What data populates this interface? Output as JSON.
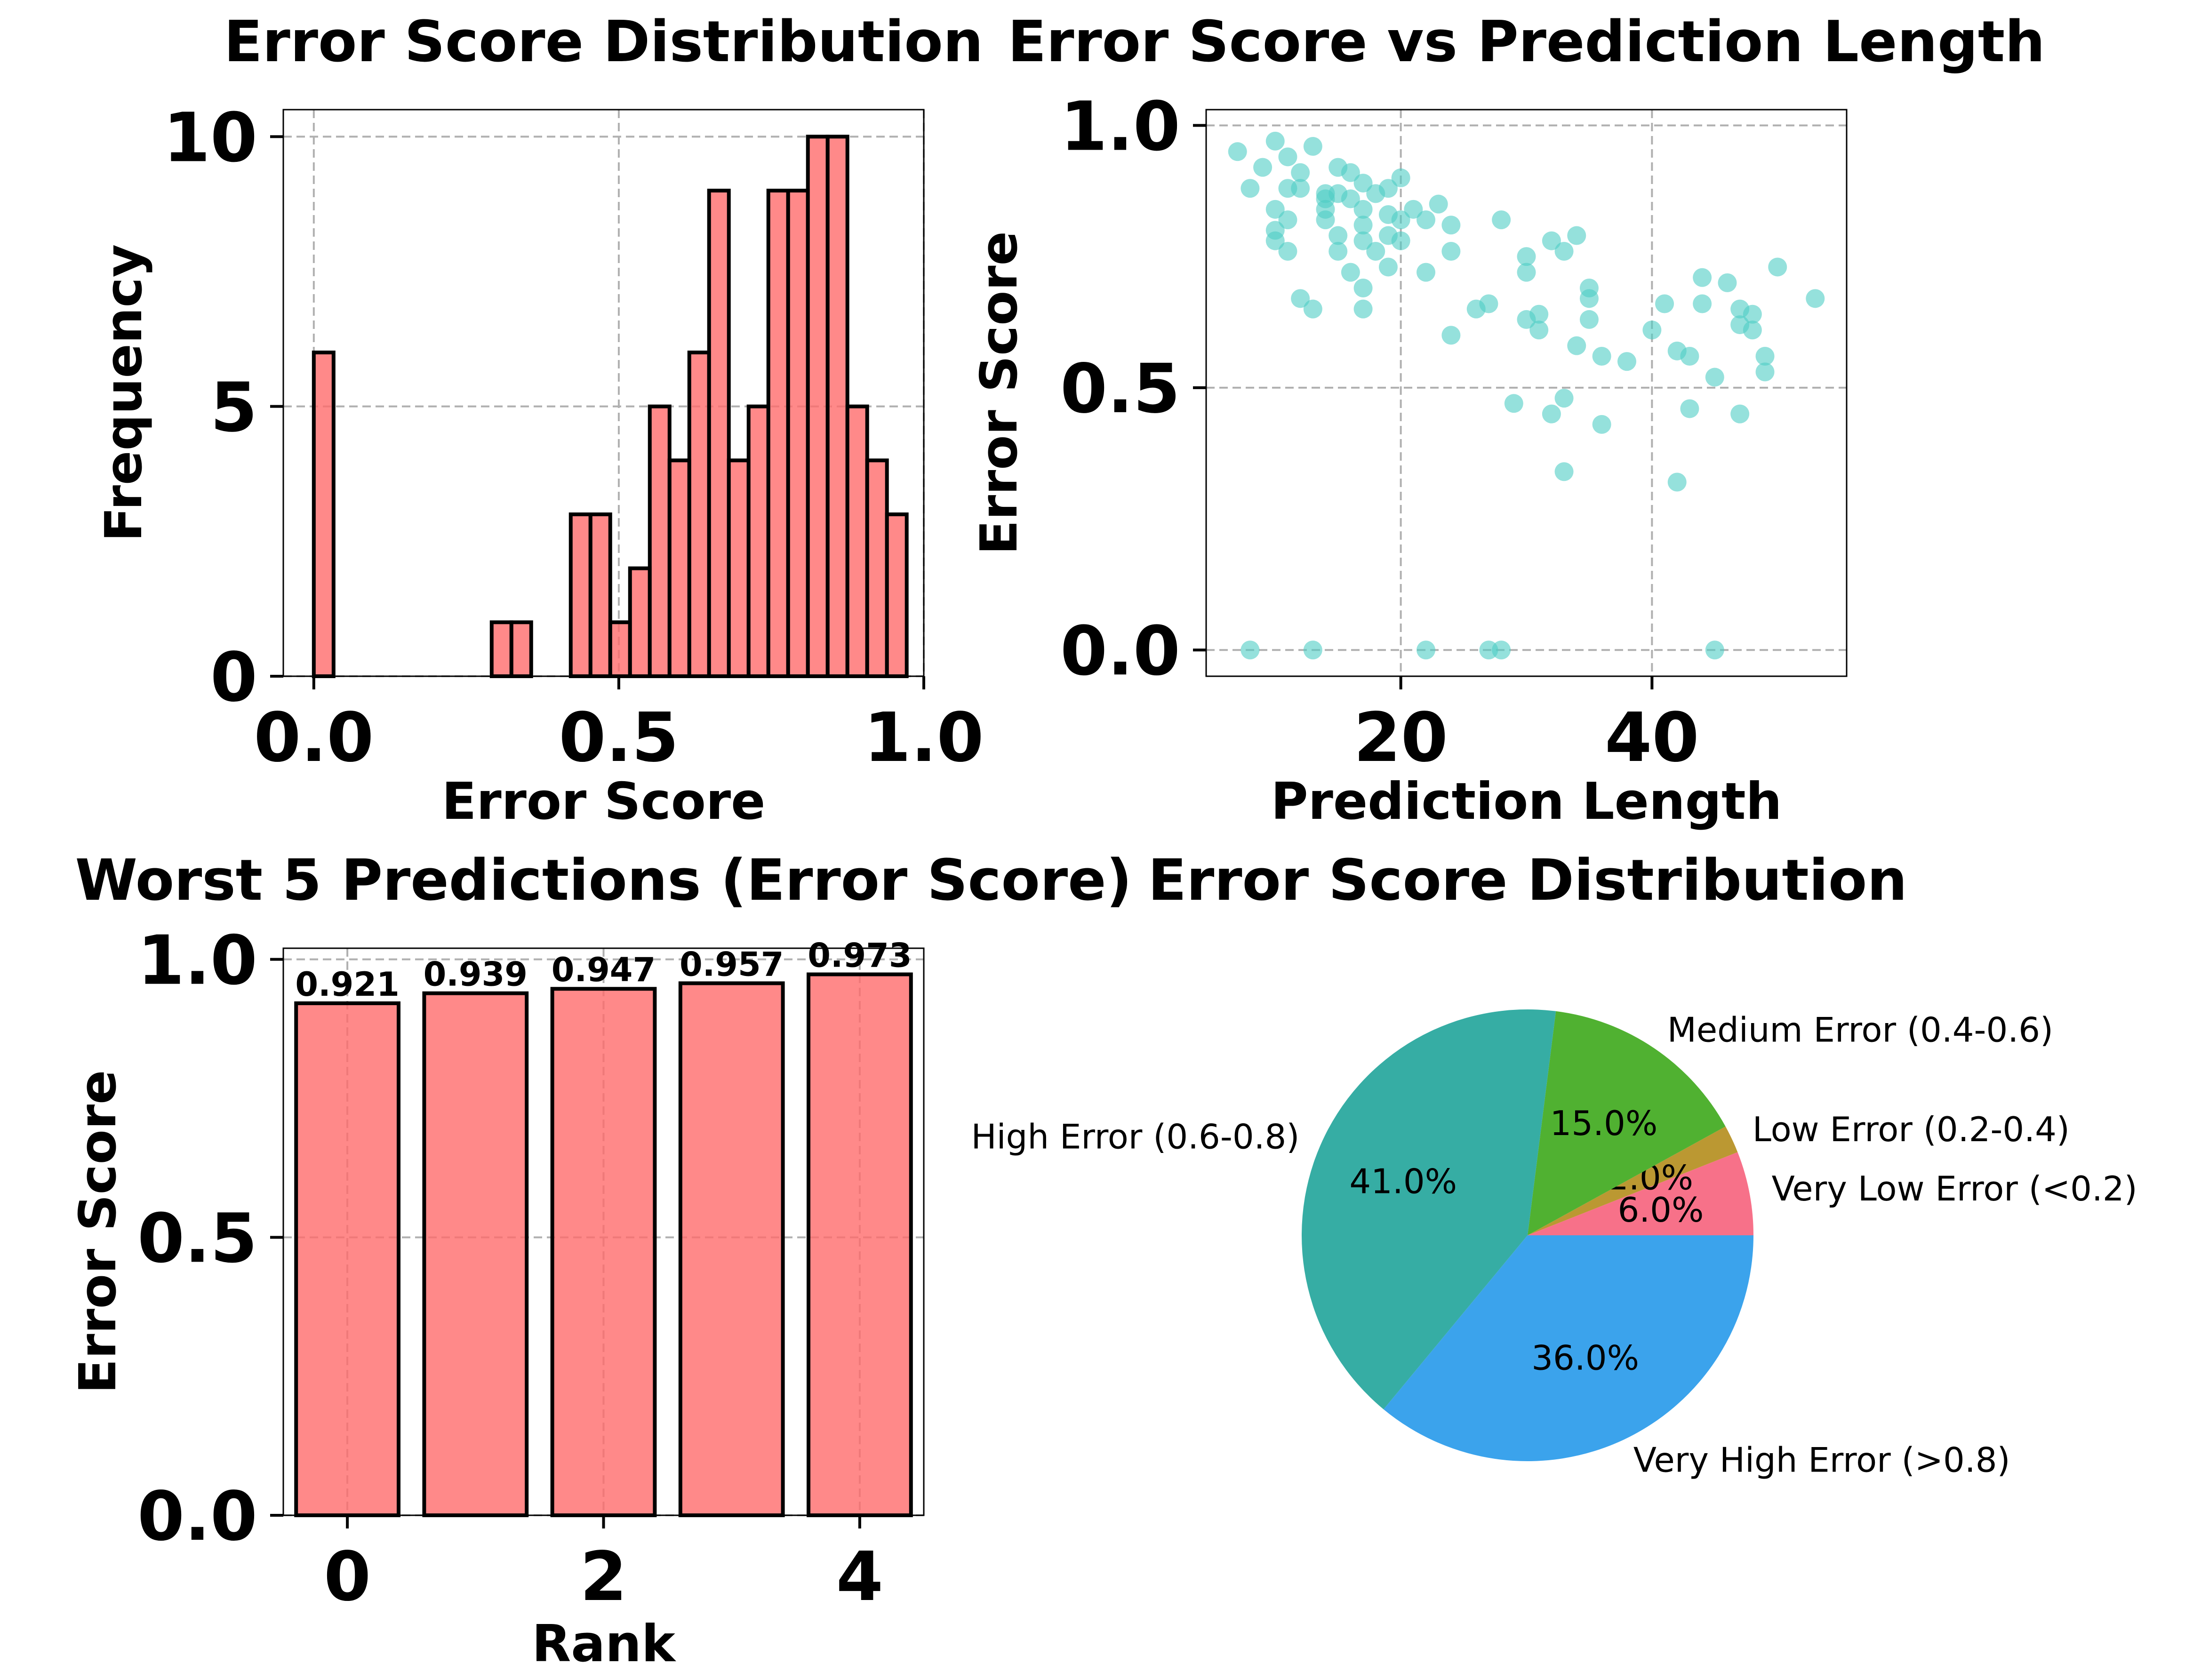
{
  "colors": {
    "hist_fill": "#ff6b6b",
    "scatter_fill": "#4ecdc4",
    "bar_fill": "#ff6b6b",
    "edge": "#000000",
    "grid": "#b0b0b0"
  },
  "chart_data": [
    {
      "type": "bar",
      "subtype": "histogram",
      "title": "Error Score Distribution",
      "xlabel": "Error Score",
      "ylabel": "Frequency",
      "xlim": [
        -0.05,
        1.0
      ],
      "ylim": [
        0,
        10.5
      ],
      "xticks": [
        0.0,
        0.5,
        1.0
      ],
      "xtick_labels": [
        "0.0",
        "0.5",
        "1.0"
      ],
      "yticks": [
        0,
        5,
        10
      ],
      "ytick_labels": [
        "0",
        "5",
        "10"
      ],
      "grid": true,
      "bin_edges": [
        0.0,
        0.0324,
        0.0648,
        0.0972,
        0.1296,
        0.162,
        0.1944,
        0.2268,
        0.2592,
        0.2916,
        0.324,
        0.3564,
        0.3888,
        0.4212,
        0.4536,
        0.486,
        0.5184,
        0.5508,
        0.5832,
        0.6156,
        0.648,
        0.6804,
        0.7128,
        0.7452,
        0.7776,
        0.81,
        0.8424,
        0.8748,
        0.9072,
        0.9396,
        0.972
      ],
      "counts": [
        6,
        0,
        0,
        0,
        0,
        0,
        0,
        0,
        0,
        1,
        1,
        0,
        0,
        3,
        3,
        1,
        2,
        5,
        4,
        6,
        9,
        4,
        5,
        9,
        9,
        10,
        10,
        5,
        4,
        3
      ]
    },
    {
      "type": "scatter",
      "title": "Error Score vs Prediction Length",
      "xlabel": "Prediction Length",
      "ylabel": "Error Score",
      "xlim": [
        4.5,
        55.5
      ],
      "ylim": [
        -0.05,
        1.03
      ],
      "xticks": [
        20,
        40
      ],
      "xtick_labels": [
        "20",
        "40"
      ],
      "yticks": [
        0.0,
        0.5,
        1.0
      ],
      "ytick_labels": [
        "0.0",
        "0.5",
        "1.0"
      ],
      "grid": true,
      "points": [
        [
          7,
          0.95
        ],
        [
          8,
          0.88
        ],
        [
          9,
          0.92
        ],
        [
          10,
          0.97
        ],
        [
          10,
          0.84
        ],
        [
          10,
          0.8
        ],
        [
          10,
          0.78
        ],
        [
          11,
          0.76
        ],
        [
          11,
          0.82
        ],
        [
          11,
          0.88
        ],
        [
          11,
          0.94
        ],
        [
          12,
          0.88
        ],
        [
          12,
          0.91
        ],
        [
          12,
          0.67
        ],
        [
          13,
          0.96
        ],
        [
          13,
          0.65
        ],
        [
          14,
          0.87
        ],
        [
          14,
          0.86
        ],
        [
          14,
          0.84
        ],
        [
          14,
          0.82
        ],
        [
          15,
          0.92
        ],
        [
          15,
          0.87
        ],
        [
          15,
          0.79
        ],
        [
          15,
          0.76
        ],
        [
          16,
          0.91
        ],
        [
          16,
          0.86
        ],
        [
          16,
          0.72
        ],
        [
          17,
          0.89
        ],
        [
          17,
          0.84
        ],
        [
          17,
          0.81
        ],
        [
          17,
          0.78
        ],
        [
          17,
          0.69
        ],
        [
          17,
          0.65
        ],
        [
          18,
          0.87
        ],
        [
          18,
          0.76
        ],
        [
          19,
          0.88
        ],
        [
          19,
          0.83
        ],
        [
          19,
          0.79
        ],
        [
          19,
          0.73
        ],
        [
          20,
          0.9
        ],
        [
          20,
          0.78
        ],
        [
          20,
          0.82
        ],
        [
          21,
          0.84
        ],
        [
          22,
          0.82
        ],
        [
          22,
          0.72
        ],
        [
          23,
          0.85
        ],
        [
          24,
          0.81
        ],
        [
          24,
          0.76
        ],
        [
          24,
          0.6
        ],
        [
          26,
          0.65
        ],
        [
          27,
          0.66
        ],
        [
          28,
          0.82
        ],
        [
          29,
          0.47
        ],
        [
          30,
          0.75
        ],
        [
          30,
          0.72
        ],
        [
          30,
          0.63
        ],
        [
          31,
          0.64
        ],
        [
          31,
          0.61
        ],
        [
          32,
          0.78
        ],
        [
          32,
          0.45
        ],
        [
          33,
          0.76
        ],
        [
          33,
          0.48
        ],
        [
          33,
          0.34
        ],
        [
          34,
          0.79
        ],
        [
          34,
          0.58
        ],
        [
          35,
          0.69
        ],
        [
          35,
          0.67
        ],
        [
          35,
          0.63
        ],
        [
          36,
          0.56
        ],
        [
          36,
          0.43
        ],
        [
          38,
          0.55
        ],
        [
          40,
          0.61
        ],
        [
          41,
          0.66
        ],
        [
          42,
          0.57
        ],
        [
          42,
          0.32
        ],
        [
          43,
          0.56
        ],
        [
          43,
          0.46
        ],
        [
          44,
          0.71
        ],
        [
          44,
          0.66
        ],
        [
          45,
          0.52
        ],
        [
          46,
          0.7
        ],
        [
          47,
          0.65
        ],
        [
          47,
          0.62
        ],
        [
          47,
          0.45
        ],
        [
          48,
          0.64
        ],
        [
          48,
          0.61
        ],
        [
          49,
          0.56
        ],
        [
          49,
          0.53
        ],
        [
          50,
          0.73
        ],
        [
          53,
          0.67
        ],
        [
          8,
          0.0
        ],
        [
          13,
          0.0
        ],
        [
          22,
          0.0
        ],
        [
          27,
          0.0
        ],
        [
          28,
          0.0
        ],
        [
          45,
          0.0
        ]
      ]
    },
    {
      "type": "bar",
      "title": "Worst 5 Predictions (Error Score)",
      "xlabel": "Rank",
      "ylabel": "Error Score",
      "xlim": [
        -0.5,
        4.5
      ],
      "ylim": [
        0,
        1.02
      ],
      "xticks": [
        0,
        2,
        4
      ],
      "xtick_labels": [
        "0",
        "2",
        "4"
      ],
      "yticks": [
        0.0,
        0.5,
        1.0
      ],
      "ytick_labels": [
        "0.0",
        "0.5",
        "1.0"
      ],
      "grid": true,
      "categories": [
        0,
        1,
        2,
        3,
        4
      ],
      "values": [
        0.921,
        0.939,
        0.947,
        0.957,
        0.973
      ],
      "value_labels": [
        "0.921",
        "0.939",
        "0.947",
        "0.957",
        "0.973"
      ]
    },
    {
      "type": "pie",
      "title": "Error Score Distribution",
      "slices": [
        {
          "label": "Very Low Error (<0.2)",
          "value": 6.0,
          "pct_label": "6.0%",
          "color": "#f77189"
        },
        {
          "label": "Low Error (0.2-0.4)",
          "value": 2.0,
          "pct_label": "2.0%",
          "color": "#bb9832"
        },
        {
          "label": "Medium Error (0.4-0.6)",
          "value": 15.0,
          "pct_label": "15.0%",
          "color": "#50b131"
        },
        {
          "label": "High Error (0.6-0.8)",
          "value": 41.0,
          "pct_label": "41.0%",
          "color": "#36ada4"
        },
        {
          "label": "Very High Error (>0.8)",
          "value": 36.0,
          "pct_label": "36.0%",
          "color": "#3ba3ec"
        }
      ]
    }
  ]
}
